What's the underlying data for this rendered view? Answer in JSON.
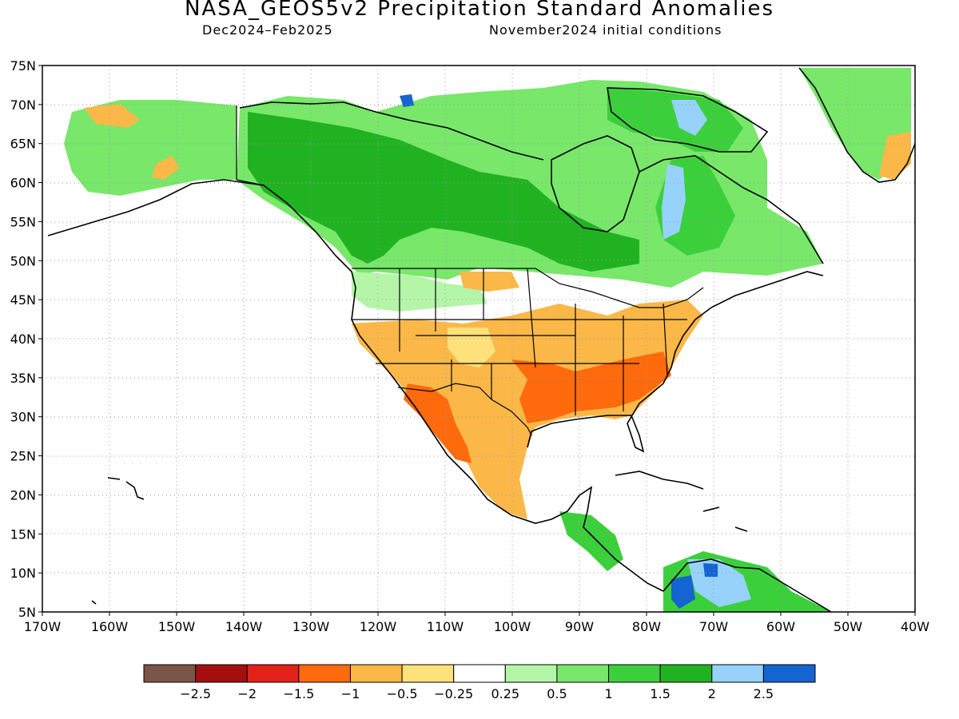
{
  "header": {
    "title": "NASA_GEOS5v2 Precipitation Standard Anomalies",
    "period": "Dec2024–Feb2025",
    "initial_conditions": "November2024 initial conditions"
  },
  "map": {
    "lat_labels": [
      "75N",
      "70N",
      "65N",
      "60N",
      "55N",
      "50N",
      "45N",
      "40N",
      "35N",
      "30N",
      "25N",
      "20N",
      "15N",
      "10N",
      "5N"
    ],
    "lon_labels": [
      "170W",
      "160W",
      "150W",
      "140W",
      "130W",
      "120W",
      "110W",
      "100W",
      "90W",
      "80W",
      "70W",
      "60W",
      "50W",
      "40W"
    ],
    "lat_range": [
      5,
      75
    ],
    "lon_range": [
      -170,
      -40
    ],
    "grid": "dotted"
  },
  "colorbar": {
    "colors": [
      "#7a5548",
      "#a50e0e",
      "#e32219",
      "#ff6a0d",
      "#fbb848",
      "#fee17a",
      "#ffffff",
      "#b4f5a8",
      "#78e76a",
      "#3ccf3c",
      "#21b221",
      "#96d2fa",
      "#1464d2"
    ],
    "labels": [
      "−2.5",
      "−2",
      "−1.5",
      "−1",
      "−0.5",
      "−0.25",
      "0.25",
      "0.5",
      "1",
      "1.5",
      "2",
      "2.5"
    ]
  }
}
